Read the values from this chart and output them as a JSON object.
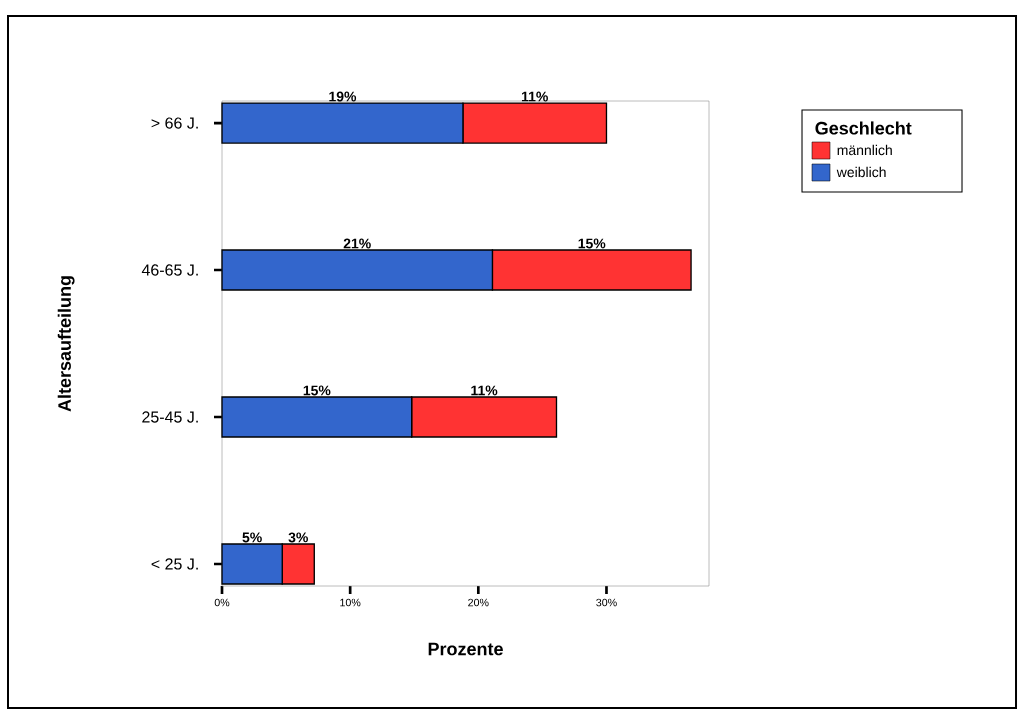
{
  "chart_data": {
    "type": "bar",
    "orientation": "horizontal",
    "stacked": true,
    "xlabel": "Prozente",
    "ylabel": "Altersaufteilung",
    "legend_title": "Geschlecht",
    "legend": "right",
    "categories": [
      "> 66 J.",
      "46-65 J.",
      "25-45 J.",
      "< 25 J."
    ],
    "series": [
      {
        "name": "weiblich",
        "color": "#3366cc",
        "values": [
          18.8,
          21.1,
          14.8,
          4.7
        ],
        "value_labels": [
          "19%",
          "21%",
          "15%",
          "5%"
        ]
      },
      {
        "name": "männlich",
        "color": "#ff3333",
        "values": [
          11.2,
          15.5,
          11.3,
          2.5
        ],
        "value_labels": [
          "11%",
          "15%",
          "11%",
          "3%"
        ]
      }
    ],
    "xlim": [
      0,
      38
    ],
    "xticks": [
      {
        "value": 0,
        "label": "0%"
      },
      {
        "value": 10,
        "label": "10%"
      },
      {
        "value": 20,
        "label": "20%"
      },
      {
        "value": 30,
        "label": "30%"
      }
    ]
  }
}
